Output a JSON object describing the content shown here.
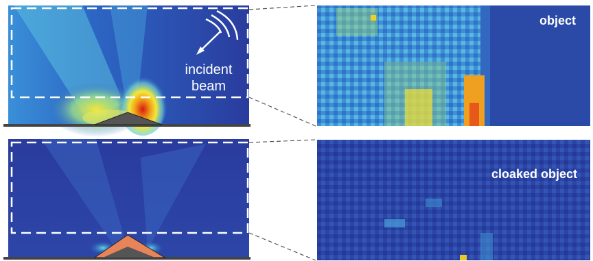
{
  "labels": {
    "incident_line1": "incident",
    "incident_line2": "beam",
    "object": "object",
    "cloaked_object": "cloaked object"
  },
  "colors": {
    "field_background": "#2a3a9a",
    "measurement_background": "#2b4aa8",
    "dashed_frame": "#ffffff",
    "object_shape": "#555555",
    "cloak_shell": "#e8845a",
    "ground": "#444444"
  },
  "icons": [
    "beam-arrow-icon"
  ]
}
